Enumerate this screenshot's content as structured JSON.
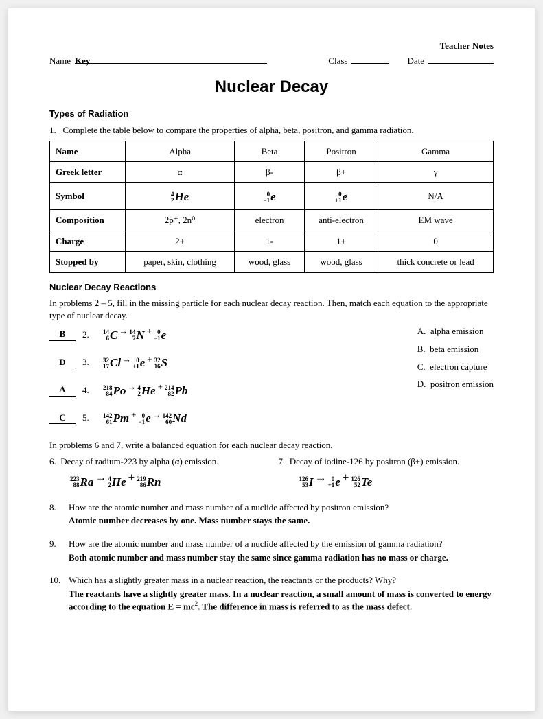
{
  "header": {
    "teacher_notes": "Teacher Notes",
    "name_label": "Name",
    "name_value": "Key",
    "class_label": "Class",
    "date_label": "Date"
  },
  "title": "Nuclear Decay",
  "section1": {
    "heading": "Types of Radiation",
    "instruction_num": "1.",
    "instruction": "Complete the table below to compare the properties of alpha, beta, positron, and gamma radiation.",
    "table": {
      "row_labels": [
        "Name",
        "Greek letter",
        "Symbol",
        "Composition",
        "Charge",
        "Stopped by"
      ],
      "cols": [
        {
          "name": "Alpha",
          "greek": "α",
          "symbol": {
            "mass": "4",
            "z": "2",
            "el": "He"
          },
          "comp": "2p⁺, 2n⁰",
          "charge": "2+",
          "stopped": "paper, skin, clothing"
        },
        {
          "name": "Beta",
          "greek": "β-",
          "symbol": {
            "mass": "0",
            "z": "−1",
            "el": "e"
          },
          "comp": "electron",
          "charge": "1-",
          "stopped": "wood, glass"
        },
        {
          "name": "Positron",
          "greek": "β+",
          "symbol": {
            "mass": "0",
            "z": "+1",
            "el": "e"
          },
          "comp": "anti-electron",
          "charge": "1+",
          "stopped": "wood, glass"
        },
        {
          "name": "Gamma",
          "greek": "γ",
          "symbol_text": "N/A",
          "comp": "EM wave",
          "charge": "0",
          "stopped": "thick concrete or lead"
        }
      ]
    }
  },
  "section2": {
    "heading": "Nuclear Decay Reactions",
    "instruction": "In problems 2 – 5, fill in the missing particle for each nuclear decay reaction.  Then, match each equation to the appropriate type of nuclear decay.",
    "options": [
      {
        "letter": "A.",
        "text": "alpha emission"
      },
      {
        "letter": "B.",
        "text": "beta emission"
      },
      {
        "letter": "C.",
        "text": "electron capture"
      },
      {
        "letter": "D.",
        "text": "positron emission"
      }
    ],
    "problems": [
      {
        "ans": "B",
        "num": "2.",
        "parts": [
          {
            "m": "14",
            "z": "6",
            "el": "C"
          },
          {
            "arrow": "→"
          },
          {
            "m": "14",
            "z": "7",
            "el": "N"
          },
          {
            "plus": "+"
          },
          {
            "m": "0",
            "z": "−1",
            "el": "e",
            "bold": true
          }
        ]
      },
      {
        "ans": "D",
        "num": "3.",
        "parts": [
          {
            "m": "32",
            "z": "17",
            "el": "Cl",
            "bold": true
          },
          {
            "arrow": "→"
          },
          {
            "m": "0",
            "z": "+1",
            "el": "e"
          },
          {
            "plus": "+"
          },
          {
            "m": "32",
            "z": "16",
            "el": "S"
          }
        ]
      },
      {
        "ans": "A",
        "num": "4.",
        "parts": [
          {
            "m": "218",
            "z": "84",
            "el": "Po"
          },
          {
            "arrow": "→"
          },
          {
            "m": "4",
            "z": "2",
            "el": "He"
          },
          {
            "plus": "+"
          },
          {
            "m": "214",
            "z": "82",
            "el": "Pb",
            "bold": true
          }
        ]
      },
      {
        "ans": "C",
        "num": "5.",
        "parts": [
          {
            "m": "142",
            "z": "61",
            "el": "Pm",
            "bold": true
          },
          {
            "plus": "+"
          },
          {
            "m": "0",
            "z": "−1",
            "el": "e"
          },
          {
            "arrow": "→"
          },
          {
            "m": "142",
            "z": "60",
            "el": "Nd"
          }
        ]
      }
    ],
    "instr67": "In problems 6 and 7, write a balanced equation for each nuclear decay reaction.",
    "p6": {
      "num": "6.",
      "text": "Decay of radium-223 by alpha (α) emission.",
      "parts": [
        {
          "m": "223",
          "z": "88",
          "el": "Ra"
        },
        {
          "arrow": "→"
        },
        {
          "m": "4",
          "z": "2",
          "el": "He"
        },
        {
          "plus": "+"
        },
        {
          "m": "219",
          "z": "86",
          "el": "Rn"
        }
      ]
    },
    "p7": {
      "num": "7.",
      "text": "Decay of iodine-126 by positron (β+) emission.",
      "parts": [
        {
          "m": "126",
          "z": "53",
          "el": "I"
        },
        {
          "arrow": "→"
        },
        {
          "m": "0",
          "z": "+1",
          "el": "e"
        },
        {
          "plus": "+"
        },
        {
          "m": "126",
          "z": "52",
          "el": "Te"
        }
      ]
    }
  },
  "questions": [
    {
      "num": "8.",
      "q": "How are the atomic number and mass number of a nuclide affected by positron emission?",
      "a": "Atomic number decreases by one.  Mass number stays the same."
    },
    {
      "num": "9.",
      "q": "How are the atomic number and mass number of a nuclide affected by the emission of gamma radiation?",
      "a": "Both atomic number and mass number stay the same since gamma radiation has no mass or charge."
    },
    {
      "num": "10.",
      "q": "Which has a slightly greater mass in a nuclear reaction, the reactants or the products?  Why?",
      "a": "The reactants have a slightly greater mass.  In a nuclear reaction, a small amount of mass is converted to energy according to the equation E = mc².   The difference in mass is referred to as the mass defect."
    }
  ]
}
